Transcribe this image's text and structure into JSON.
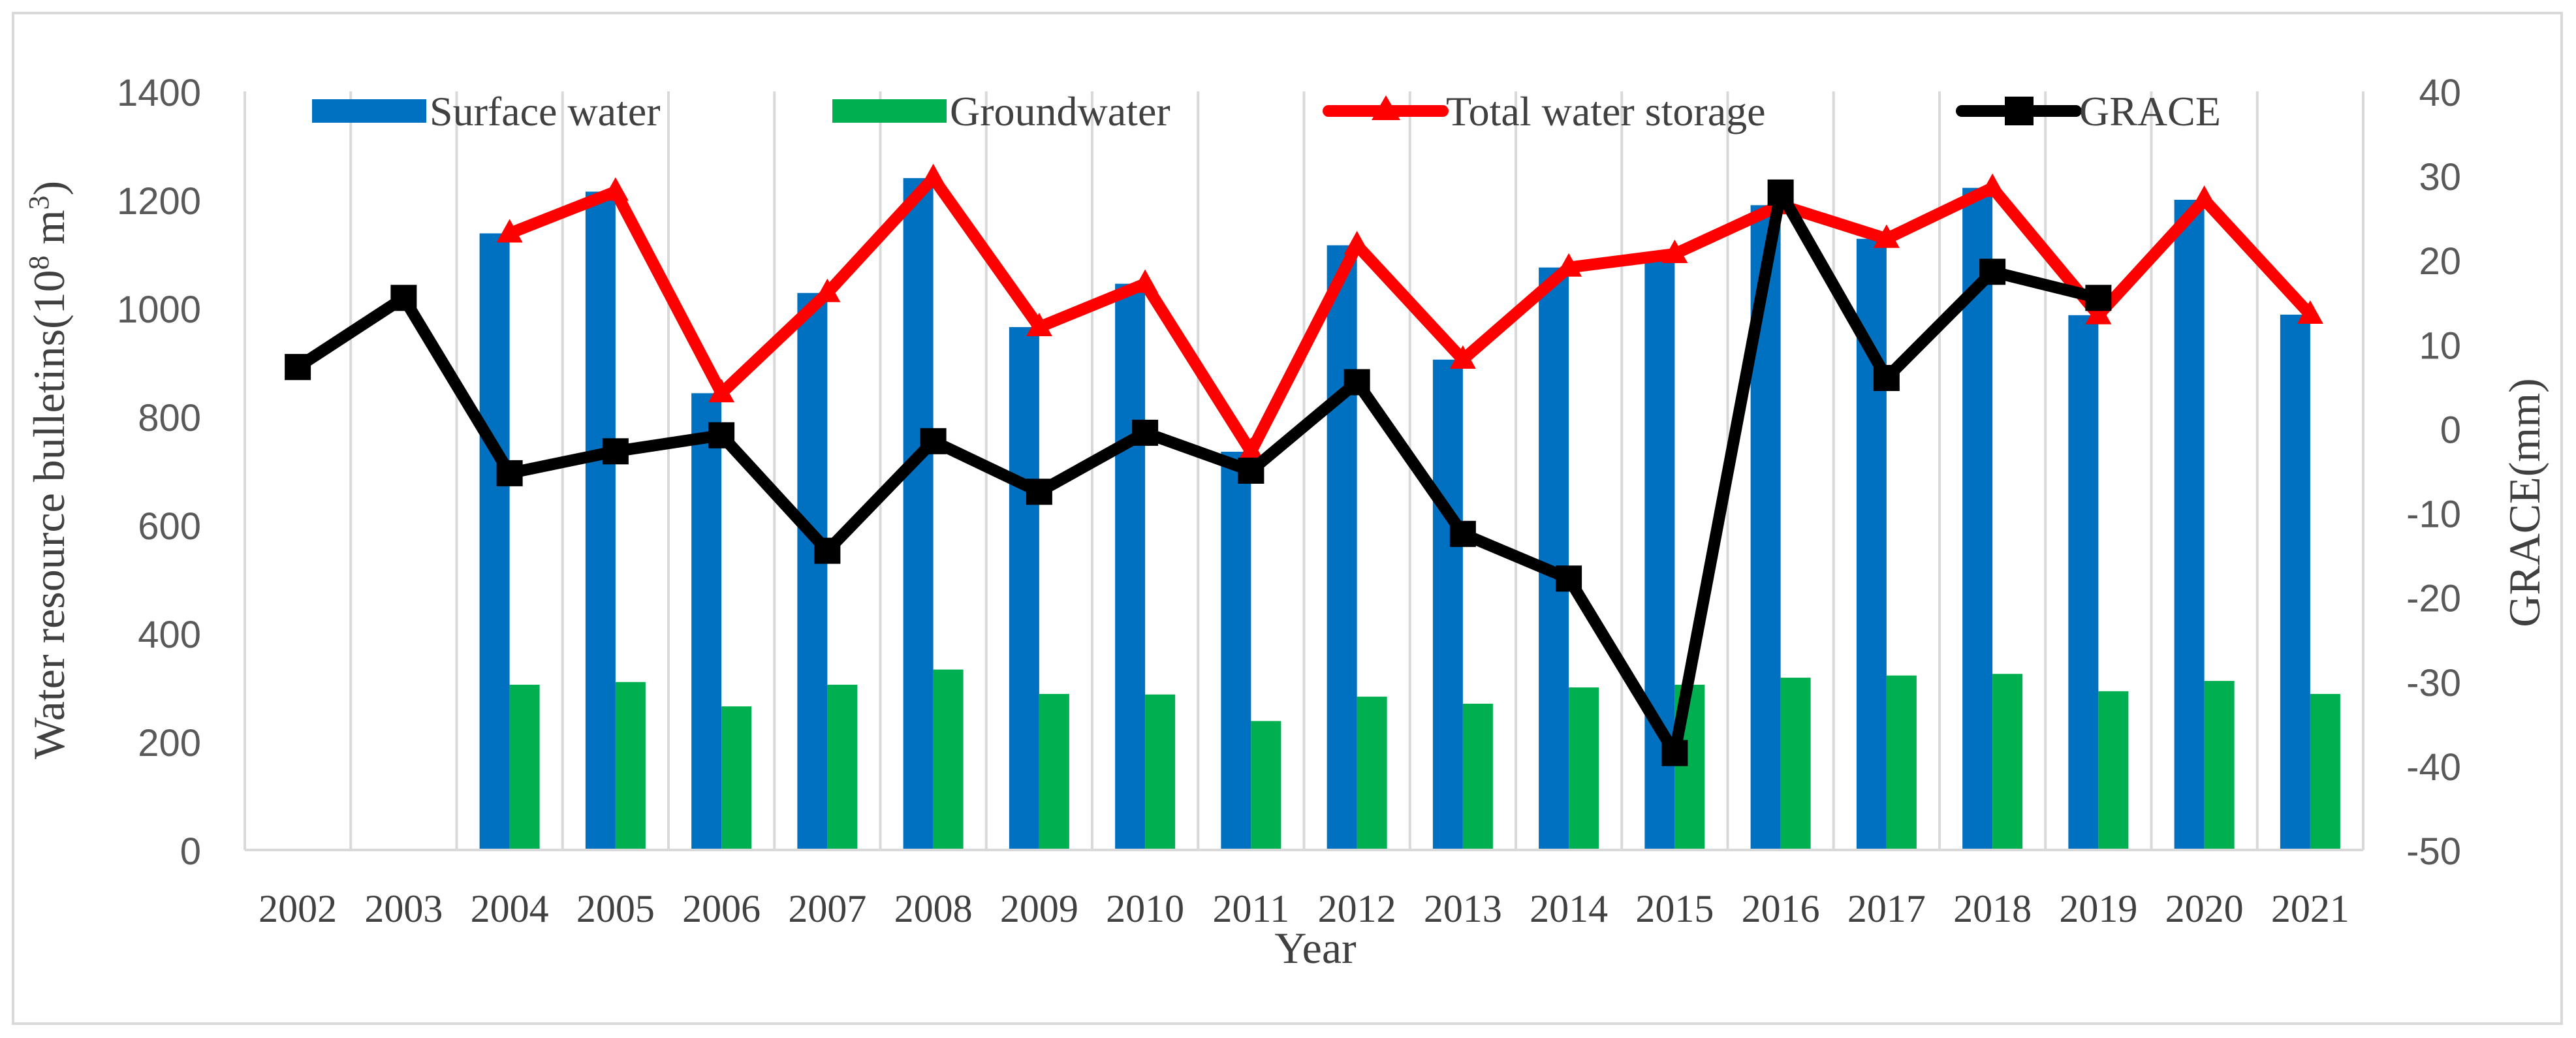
{
  "chart_data": {
    "type": "bar+line",
    "categories": [
      "2002",
      "2003",
      "2004",
      "2005",
      "2006",
      "2007",
      "2008",
      "2009",
      "2010",
      "2011",
      "2012",
      "2013",
      "2014",
      "2015",
      "2016",
      "2017",
      "2018",
      "2019",
      "2020",
      "2021"
    ],
    "xlabel": "Year",
    "ylabel_left": "Water resource bulletins(10",
    "ylabel_left_sup": "8",
    "ylabel_left_unit": " m",
    "ylabel_left_unit_sup": "3",
    "ylabel_left_close": ")",
    "ylabel_right": "GRACE(mm)",
    "ylim_left": [
      0,
      1400
    ],
    "yticks_left": [
      0,
      200,
      400,
      600,
      800,
      1000,
      1200,
      1400
    ],
    "ylim_right": [
      -50,
      40
    ],
    "yticks_right": [
      -50,
      -40,
      -30,
      -20,
      -10,
      0,
      10,
      20,
      30,
      40
    ],
    "grid": "vertical",
    "legend_position": "top",
    "series": [
      {
        "name": "Surface water",
        "kind": "bar",
        "axis": "left",
        "color": "#0070C0",
        "values": [
          null,
          null,
          1138,
          1215,
          843,
          1028,
          1240,
          965,
          1045,
          735,
          1116,
          905,
          1075,
          1090,
          1190,
          1128,
          1222,
          987,
          1200,
          988
        ]
      },
      {
        "name": "Groundwater",
        "kind": "bar",
        "axis": "left",
        "color": "#00B050",
        "values": [
          null,
          null,
          305,
          310,
          265,
          305,
          333,
          288,
          287,
          238,
          283,
          270,
          300,
          305,
          318,
          322,
          325,
          293,
          312,
          288
        ]
      },
      {
        "name": "Total water storage",
        "kind": "line",
        "axis": "left",
        "color": "#FF0000",
        "marker": "triangle",
        "values": [
          null,
          null,
          1138,
          1215,
          843,
          1028,
          1240,
          965,
          1045,
          735,
          1116,
          905,
          1075,
          1100,
          1190,
          1128,
          1222,
          987,
          1200,
          988
        ]
      },
      {
        "name": "GRACE",
        "kind": "line",
        "axis": "right",
        "color": "#000000",
        "marker": "square",
        "values": [
          7.3,
          15.5,
          -5.3,
          -2.7,
          -0.8,
          -14.5,
          -1.5,
          -7.5,
          -0.5,
          -5.0,
          5.5,
          -12.5,
          -17.8,
          -38.5,
          28.0,
          6.0,
          18.6,
          15.5,
          null,
          null
        ]
      }
    ]
  }
}
